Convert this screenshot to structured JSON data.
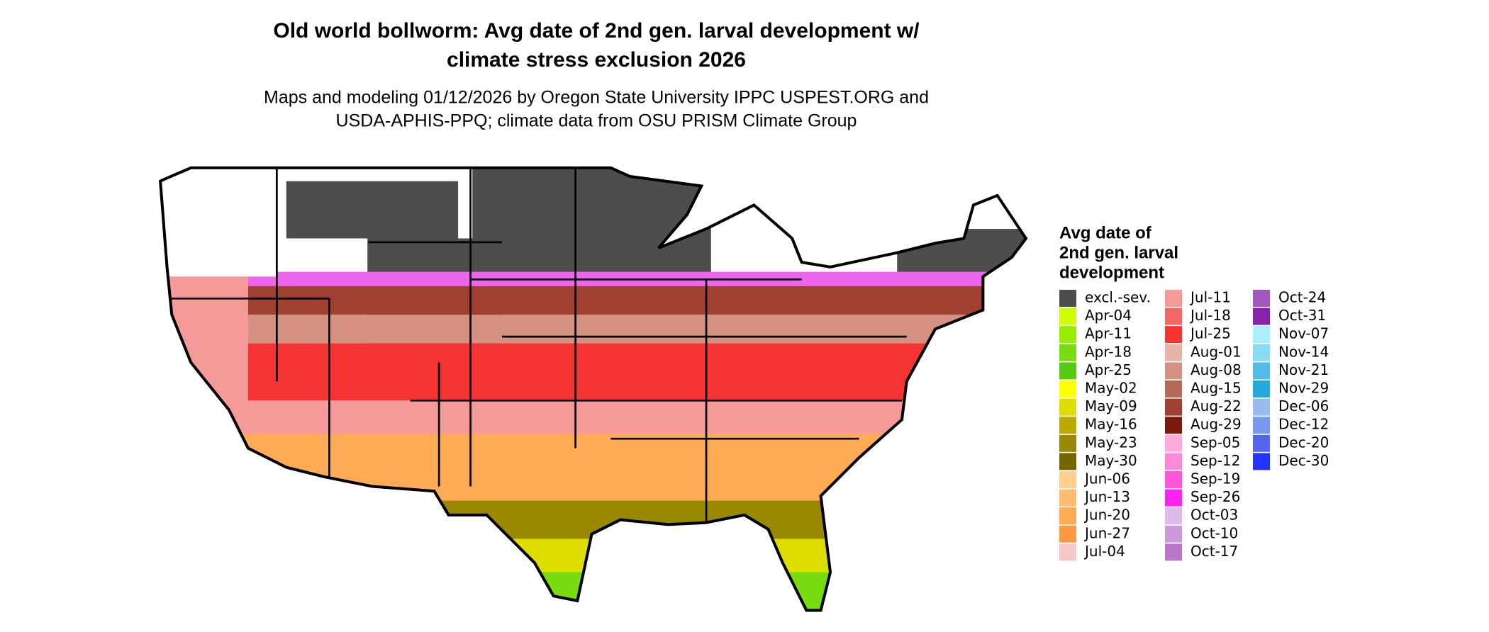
{
  "header": {
    "title": [
      "Old world bollworm: Avg date of 2nd gen. larval development w/",
      "climate stress exclusion 2026"
    ],
    "subtitle": [
      "Maps and modeling 01/12/2026 by Oregon State University IPPC USPEST.ORG and",
      "USDA-APHIS-PPQ; climate data from OSU PRISM Climate Group"
    ]
  },
  "legend": {
    "title": [
      "Avg date of",
      "2nd gen. larval",
      "development"
    ],
    "columns": [
      [
        {
          "label": "excl.-sev.",
          "color": "#4d4d4d"
        },
        {
          "label": "Apr-04",
          "color": "#ccff00"
        },
        {
          "label": "Apr-11",
          "color": "#99ee00"
        },
        {
          "label": "Apr-18",
          "color": "#77dd11"
        },
        {
          "label": "Apr-25",
          "color": "#55cc11"
        },
        {
          "label": "May-02",
          "color": "#ffff00"
        },
        {
          "label": "May-09",
          "color": "#dddd00"
        },
        {
          "label": "May-16",
          "color": "#bbaa00"
        },
        {
          "label": "May-23",
          "color": "#998800"
        },
        {
          "label": "May-30",
          "color": "#776600"
        },
        {
          "label": "Jun-06",
          "color": "#ffd090"
        },
        {
          "label": "Jun-13",
          "color": "#ffbb70"
        },
        {
          "label": "Jun-20",
          "color": "#ffaa55"
        },
        {
          "label": "Jun-27",
          "color": "#ff9944"
        },
        {
          "label": "Jul-04",
          "color": "#f5c8c8"
        }
      ],
      [
        {
          "label": "Jul-11",
          "color": "#f59999"
        },
        {
          "label": "Jul-18",
          "color": "#f56666"
        },
        {
          "label": "Jul-25",
          "color": "#f53333"
        },
        {
          "label": "Aug-01",
          "color": "#e8b4a8"
        },
        {
          "label": "Aug-08",
          "color": "#d49080"
        },
        {
          "label": "Aug-15",
          "color": "#b86858"
        },
        {
          "label": "Aug-22",
          "color": "#a04030"
        },
        {
          "label": "Aug-29",
          "color": "#7a1a0a"
        },
        {
          "label": "Sep-05",
          "color": "#ffaadd"
        },
        {
          "label": "Sep-12",
          "color": "#ff88dd"
        },
        {
          "label": "Sep-19",
          "color": "#ff55dd"
        },
        {
          "label": "Sep-26",
          "color": "#ff22ee"
        },
        {
          "label": "Oct-03",
          "color": "#ddbbee"
        },
        {
          "label": "Oct-10",
          "color": "#cc99dd"
        },
        {
          "label": "Oct-17",
          "color": "#bb77cc"
        }
      ],
      [
        {
          "label": "Oct-24",
          "color": "#a355c0"
        },
        {
          "label": "Oct-31",
          "color": "#8822aa"
        },
        {
          "label": "Nov-07",
          "color": "#aaeeff"
        },
        {
          "label": "Nov-14",
          "color": "#88ddf5"
        },
        {
          "label": "Nov-21",
          "color": "#55bbe8"
        },
        {
          "label": "Nov-29",
          "color": "#22aadd"
        },
        {
          "label": "Dec-06",
          "color": "#99bbee"
        },
        {
          "label": "Dec-12",
          "color": "#7799ee"
        },
        {
          "label": "Dec-20",
          "color": "#5566ee"
        },
        {
          "label": "Dec-30",
          "color": "#2233ff"
        }
      ]
    ]
  }
}
